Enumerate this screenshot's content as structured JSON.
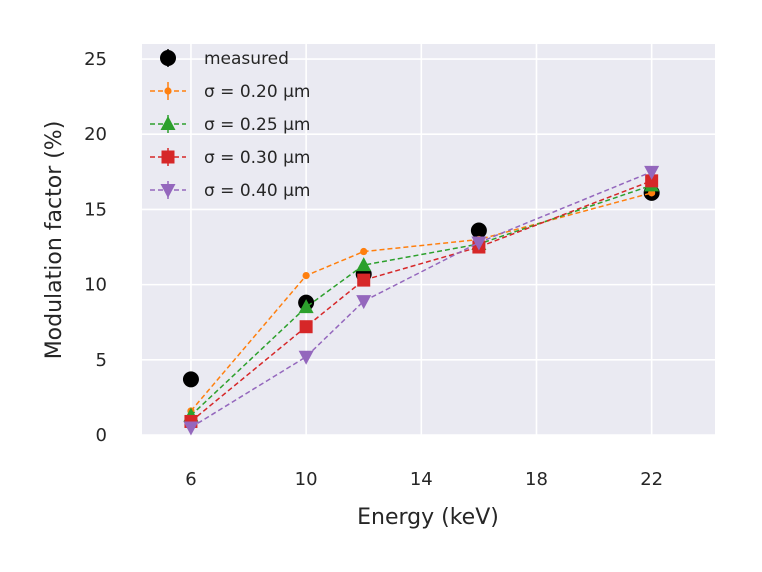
{
  "chart_data": {
    "type": "line",
    "xlabel": "Energy (keV)",
    "ylabel": "Modulation factor (%)",
    "xlim": [
      4.3,
      24.2
    ],
    "ylim": [
      0,
      26
    ],
    "xticks": [
      6,
      10,
      14,
      18,
      22
    ],
    "yticks": [
      0,
      5,
      10,
      15,
      20,
      25
    ],
    "grid": true,
    "legend_position": "top-left",
    "series": [
      {
        "name": "measured",
        "marker": "circle",
        "color": "#000000",
        "line": "none",
        "x": [
          6,
          10,
          12,
          16,
          22
        ],
        "y": [
          3.7,
          8.8,
          10.7,
          13.6,
          16.1
        ],
        "yerr": [
          0.2,
          0.5,
          0.3,
          0.4,
          0.5
        ]
      },
      {
        "name": "σ = 0.20 µm",
        "marker": "point",
        "color": "#ff7f0e",
        "line": "dashed",
        "x": [
          6,
          10,
          12,
          16,
          22
        ],
        "y": [
          1.6,
          10.6,
          12.2,
          13.0,
          16.1
        ],
        "yerr": [
          0.1,
          0.1,
          0.1,
          0.1,
          0.1
        ]
      },
      {
        "name": "σ = 0.25 µm",
        "marker": "triangle-up",
        "color": "#2ca02c",
        "line": "dashed",
        "x": [
          6,
          10,
          12,
          16,
          22
        ],
        "y": [
          1.3,
          8.5,
          11.3,
          12.7,
          16.6
        ],
        "yerr": [
          0.1,
          0.1,
          0.1,
          0.1,
          0.1
        ]
      },
      {
        "name": "σ = 0.30 µm",
        "marker": "square",
        "color": "#d62728",
        "line": "dashed",
        "x": [
          6,
          10,
          12,
          16,
          22
        ],
        "y": [
          0.9,
          7.2,
          10.3,
          12.5,
          16.9
        ],
        "yerr": [
          0.1,
          0.1,
          0.1,
          0.1,
          0.1
        ]
      },
      {
        "name": "σ = 0.40 µm",
        "marker": "triangle-down",
        "color": "#9467bd",
        "line": "dashed",
        "x": [
          6,
          10,
          12,
          16,
          22
        ],
        "y": [
          0.5,
          5.2,
          8.9,
          12.8,
          17.5
        ],
        "yerr": [
          0.1,
          0.1,
          0.1,
          0.1,
          0.1
        ]
      }
    ]
  }
}
